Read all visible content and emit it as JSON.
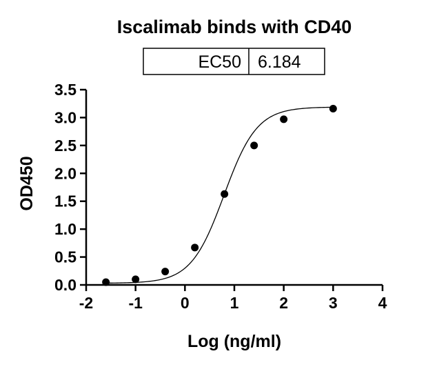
{
  "chart_data": {
    "type": "scatter",
    "title": "Iscalimab binds with CD40",
    "xlabel": "Log (ng/ml)",
    "ylabel": "OD450",
    "xlim": [
      -2,
      4
    ],
    "ylim": [
      0,
      3.5
    ],
    "x_ticks": [
      "-2",
      "-1",
      "0",
      "1",
      "2",
      "3",
      "4"
    ],
    "y_ticks": [
      "0.0",
      "0.5",
      "1.0",
      "1.5",
      "2.0",
      "2.5",
      "3.0",
      "3.5"
    ],
    "grid": false,
    "legend": "none",
    "series": [
      {
        "points": [
          {
            "x": -1.6,
            "y": 0.05
          },
          {
            "x": -1.0,
            "y": 0.1
          },
          {
            "x": -0.4,
            "y": 0.24
          },
          {
            "x": 0.2,
            "y": 0.67
          },
          {
            "x": 0.8,
            "y": 1.63
          },
          {
            "x": 1.4,
            "y": 2.5
          },
          {
            "x": 2.0,
            "y": 2.97
          },
          {
            "x": 3.0,
            "y": 3.16
          }
        ]
      }
    ],
    "fit_curve": {
      "model": "four-parameter logistic",
      "bottom": 0.03,
      "top": 3.19,
      "hill_slope": 1.3,
      "log_ec50": 0.7913
    },
    "ec50_table": {
      "label": "EC50",
      "value": "6.184"
    },
    "colors": {
      "marker": "#000000",
      "curve": "#000000",
      "axis": "#000000"
    }
  }
}
